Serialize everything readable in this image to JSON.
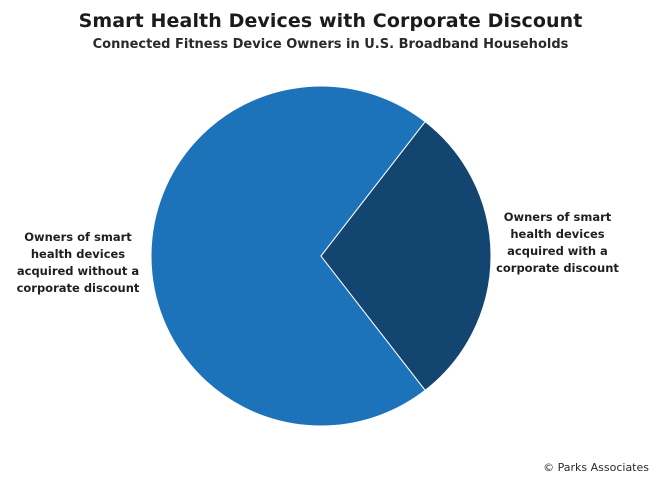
{
  "chart_data": {
    "type": "pie",
    "title": "Smart Health Devices with Corporate Discount",
    "subtitle": "Connected Fitness Device Owners in U.S. Broadband Households",
    "slices": [
      {
        "label": "Owners of smart health devices acquired without a corporate discount",
        "value": 71,
        "color": "#1d73b9"
      },
      {
        "label": "Owners of smart health devices acquired with a corporate discount",
        "value": 29,
        "color": "#124570"
      }
    ],
    "legend": "none",
    "credit": "© Parks Associates"
  },
  "labels": {
    "left": "Owners of smart\nhealth devices\nacquired without a\ncorporate discount",
    "right": "Owners of smart\nhealth devices\nacquired with a\ncorporate discount"
  }
}
